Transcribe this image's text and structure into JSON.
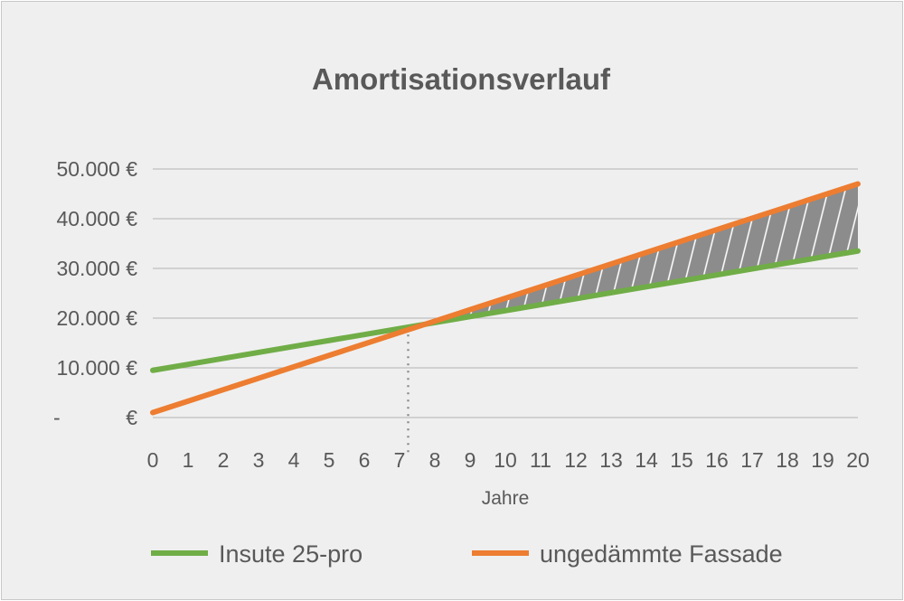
{
  "chart_data": {
    "type": "line",
    "title": "Amortisationsverlauf",
    "xlabel": "Jahre",
    "ylabel": "",
    "x": [
      0,
      1,
      2,
      3,
      4,
      5,
      6,
      7,
      8,
      9,
      10,
      11,
      12,
      13,
      14,
      15,
      16,
      17,
      18,
      19,
      20
    ],
    "xlim": [
      0,
      20
    ],
    "ylim": [
      0,
      50000
    ],
    "y_ticks": [
      {
        "value": 0,
        "label": "-",
        "currency": "€"
      },
      {
        "value": 10000,
        "label": "10.000",
        "currency": "€"
      },
      {
        "value": 20000,
        "label": "20.000",
        "currency": "€"
      },
      {
        "value": 30000,
        "label": "30.000",
        "currency": "€"
      },
      {
        "value": 40000,
        "label": "40.000",
        "currency": "€"
      },
      {
        "value": 50000,
        "label": "50.000",
        "currency": "€"
      }
    ],
    "grid": true,
    "legend_position": "bottom",
    "series": [
      {
        "name": "Insute 25-pro",
        "color": "#70ad47",
        "values": [
          9500,
          10700,
          11900,
          13100,
          14300,
          15500,
          16700,
          17900,
          19100,
          20300,
          21500,
          22700,
          23900,
          25100,
          26300,
          27500,
          28700,
          29900,
          31100,
          32300,
          33500
        ]
      },
      {
        "name": "ungedämmte Fassade",
        "color": "#ed7d31",
        "values": [
          1000,
          3300,
          5600,
          7900,
          10200,
          12500,
          14800,
          17100,
          19400,
          21700,
          24000,
          26300,
          28600,
          30900,
          33200,
          35500,
          37800,
          40100,
          42400,
          44700,
          47000
        ]
      }
    ],
    "annotations": {
      "break_even_x": 7.5,
      "savings_area": "hatched region between the two lines after the break-even point"
    }
  }
}
